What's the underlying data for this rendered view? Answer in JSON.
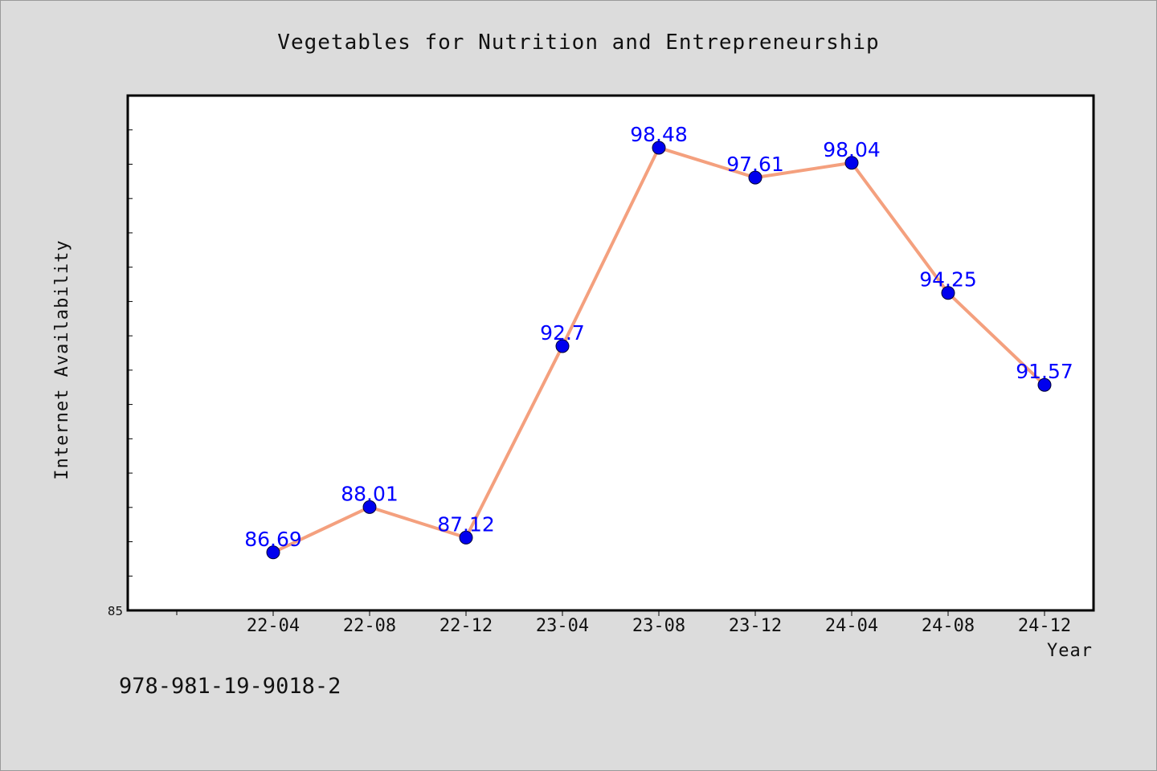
{
  "chart_data": {
    "type": "line",
    "title": "Vegetables for Nutrition and Entrepreneurship",
    "xlabel": "Year",
    "ylabel": "Internet Availability",
    "categories": [
      "22-04",
      "22-08",
      "22-12",
      "23-04",
      "23-08",
      "23-12",
      "24-04",
      "24-08",
      "24-12"
    ],
    "series": [
      {
        "values": [
          86.69,
          88.01,
          87.12,
          92.7,
          98.48,
          97.61,
          98.04,
          94.25,
          91.57
        ]
      }
    ],
    "data_labels": [
      "86.69",
      "88.01",
      "87.12",
      "92.7",
      "98.48",
      "97.61",
      "98.04",
      "94.25",
      "91.57"
    ],
    "y_tick_labels": [
      "85"
    ],
    "ylim": [
      85,
      100
    ],
    "grid": false,
    "legend": "none",
    "colors": {
      "line": "#f4a07e",
      "marker": "#0000ee",
      "data_label": "#0000ff",
      "plot_background": "#ffffff",
      "page_background": "#dcdcdc"
    }
  },
  "caption": "978-981-19-9018-2"
}
